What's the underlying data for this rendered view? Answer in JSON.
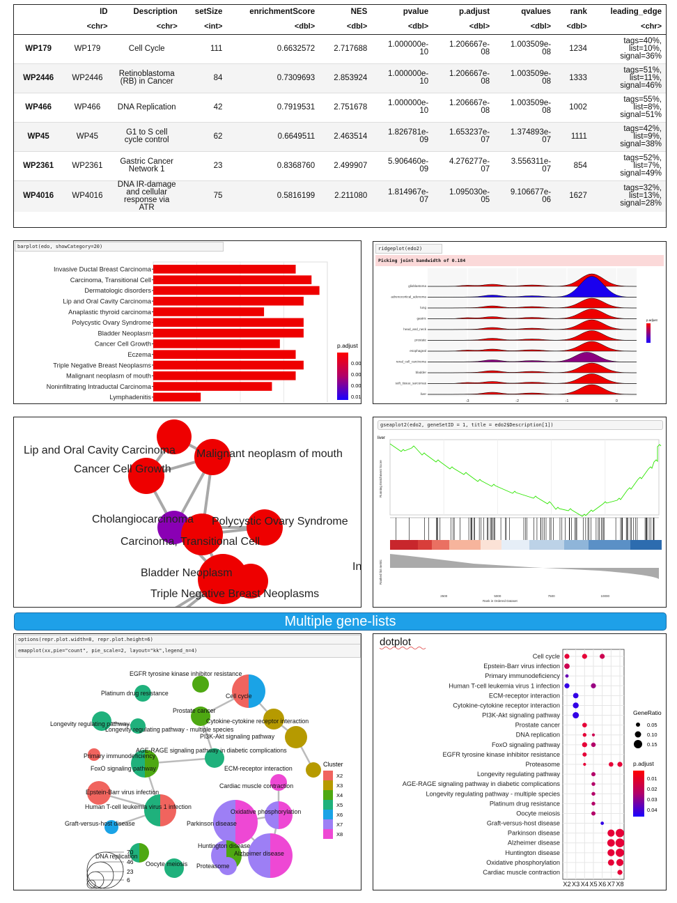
{
  "table": {
    "columns": [
      "",
      "ID",
      "Description",
      "setSize",
      "enrichmentScore",
      "NES",
      "pvalue",
      "p.adjust",
      "qvalues",
      "rank",
      "leading_edge"
    ],
    "types": [
      "",
      "<chr>",
      "<chr>",
      "<int>",
      "<dbl>",
      "<dbl>",
      "<dbl>",
      "<dbl>",
      "<dbl>",
      "<dbl>",
      "<chr>"
    ],
    "rows": [
      {
        "rowname": "WP179",
        "id": "WP179",
        "desc": "Cell Cycle",
        "size": "111",
        "es": "0.6632572",
        "nes": "2.717688",
        "pv1": "1.000000e-",
        "pv2": "10",
        "pa1": "1.206667e-",
        "pa2": "08",
        "qv1": "1.003509e-",
        "qv2": "08",
        "rank": "1234",
        "le1": "tags=40%,",
        "le2": "list=10%,",
        "le3": "signal=36%"
      },
      {
        "rowname": "WP2446",
        "id": "WP2446",
        "desc": "Retinoblastoma (RB) in Cancer",
        "size": "84",
        "es": "0.7309693",
        "nes": "2.853924",
        "pv1": "1.000000e-",
        "pv2": "10",
        "pa1": "1.206667e-",
        "pa2": "08",
        "qv1": "1.003509e-",
        "qv2": "08",
        "rank": "1333",
        "le1": "tags=51%,",
        "le2": "list=11%,",
        "le3": "signal=46%"
      },
      {
        "rowname": "WP466",
        "id": "WP466",
        "desc": "DNA Replication",
        "size": "42",
        "es": "0.7919531",
        "nes": "2.751678",
        "pv1": "1.000000e-",
        "pv2": "10",
        "pa1": "1.206667e-",
        "pa2": "08",
        "qv1": "1.003509e-",
        "qv2": "08",
        "rank": "1002",
        "le1": "tags=55%,",
        "le2": "list=8%,",
        "le3": "signal=51%"
      },
      {
        "rowname": "WP45",
        "id": "WP45",
        "desc": "G1 to S cell cycle control",
        "size": "62",
        "es": "0.6649511",
        "nes": "2.463514",
        "pv1": "1.826781e-",
        "pv2": "09",
        "pa1": "1.653237e-",
        "pa2": "07",
        "qv1": "1.374893e-",
        "qv2": "07",
        "rank": "1111",
        "le1": "tags=42%,",
        "le2": "list=9%,",
        "le3": "signal=38%"
      },
      {
        "rowname": "WP2361",
        "id": "WP2361",
        "desc": "Gastric Cancer Network 1",
        "size": "23",
        "es": "0.8368760",
        "nes": "2.499907",
        "pv1": "5.906460e-",
        "pv2": "09",
        "pa1": "4.276277e-",
        "pa2": "07",
        "qv1": "3.556311e-",
        "qv2": "07",
        "rank": "854",
        "le1": "tags=52%,",
        "le2": "list=7%,",
        "le3": "signal=49%"
      },
      {
        "rowname": "WP4016",
        "id": "WP4016",
        "desc": "DNA IR-damage and cellular response via ATR",
        "size": "75",
        "es": "0.5816199",
        "nes": "2.211080",
        "pv1": "1.814967e-",
        "pv2": "07",
        "pa1": "1.095030e-",
        "pa2": "05",
        "qv1": "9.106677e-",
        "qv2": "06",
        "rank": "1627",
        "le1": "tags=32%,",
        "le2": "list=13%,",
        "le3": "signal=28%"
      }
    ]
  },
  "barplot": {
    "code": "barplot(edo, showCategory=20)",
    "legend_title": "p.adjust",
    "legend_ticks": [
      "0.0025",
      "0.0050",
      "0.0075",
      "0.0100"
    ],
    "chart_data": {
      "type": "bar",
      "categories": [
        "Invasive Ductal Breast Carcinoma",
        "Carcinoma, Transitional Cell",
        "Dermatologic disorders",
        "Lip and Oral Cavity Carcinoma",
        "Anaplastic thyroid carcinoma",
        "Polycystic Ovary Syndrome",
        "Bladder Neoplasm",
        "Cancer Cell Growth",
        "Eczema",
        "Triple Negative Breast Neoplasms",
        "Malignant neoplasm of mouth",
        "Noninfiltrating Intraductal Carcinoma",
        "Lymphadenitis"
      ],
      "values": [
        18,
        20,
        21,
        19,
        14,
        19,
        19,
        16,
        18,
        19,
        18,
        15,
        6
      ],
      "colors": [
        "#ee0000",
        "#ee0000",
        "#ee0000",
        "#ee0000",
        "#ee0000",
        "#ee0000",
        "#ee0000",
        "#ee0000",
        "#ee0000",
        "#ee0000",
        "#ee0000",
        "#ee0000",
        "#ee0000"
      ],
      "xlim": [
        0,
        22
      ]
    }
  },
  "ridge": {
    "code": "ridgeplot(edo2)",
    "message": "Picking joint bandwidth of 0.184",
    "legend_title": "p.adjust",
    "categories": [
      "glioblastoma",
      "adrenocortical_adenoma",
      "lung",
      "gastric",
      "head_and_neck",
      "prostate",
      "esophageal",
      "renal_cell_carcinoma",
      "bladder",
      "soft_tissue_sarcomas",
      "liver"
    ],
    "x_ticks": [
      "-3",
      "-2",
      "-1",
      "0"
    ],
    "peak": [
      -0.5,
      -0.5,
      -0.5,
      -0.5,
      -0.5,
      -0.5,
      -0.5,
      -0.6,
      -0.5,
      -0.5,
      -0.5
    ],
    "fill": [
      "#ee0000",
      "#1a00ee",
      "#ee0000",
      "#ee0000",
      "#ee0000",
      "#ee0000",
      "#ee0000",
      "#8a0080",
      "#ee0000",
      "#ee0000",
      "#ee0000"
    ]
  },
  "network": {
    "labels": [
      "Lip and Oral Cavity Carcinoma",
      "Malignant neoplasm of mouth",
      "Cancer Cell Growth",
      "Cholangiocarcinoma",
      "Polycystic Ovary Syndrome",
      "Carcinoma, Transitional Cell",
      "Bladder Neoplasm",
      "Triple Negative Breast Neoplasms",
      "In"
    ]
  },
  "gsea": {
    "code": "gseaplot2(edo2, geneSetID = 1, title = edo2$Description[1])",
    "title": "liver",
    "ylabel_top": "Running Enrichment Score",
    "ylabel_bottom": "Ranked list metric",
    "xlabel": "Rank in Ordered Dataset",
    "x_ticks": [
      "2500",
      "5000",
      "7500",
      "10000"
    ]
  },
  "banner": {
    "text": "Multiple gene-lists"
  },
  "emap": {
    "code1": "options(repr.plot.width=8, repr.plot.height=6)",
    "code2": "emapplot(xx,pie=\"count\", pie_scale=2, layout=\"kk\",legend_n=4)",
    "cluster_title": "Cluster",
    "clusters": [
      {
        "name": "X2",
        "color": "#f0645e"
      },
      {
        "name": "X3",
        "color": "#b69a00"
      },
      {
        "name": "X4",
        "color": "#4ea812"
      },
      {
        "name": "X5",
        "color": "#1fb17c"
      },
      {
        "name": "X6",
        "color": "#1aa3e6"
      },
      {
        "name": "X7",
        "color": "#9d7ff5"
      },
      {
        "name": "X8",
        "color": "#ee48d4"
      }
    ],
    "size_ticks": [
      "70",
      "46",
      "23",
      "6"
    ],
    "nodes": [
      "EGFR tyrosine kinase inhibitor resistance",
      "Platinum drug resistance",
      "Cell cycle",
      "Prostate cancer",
      "Cytokine-cytokine receptor interaction",
      "Longevity regulating pathway",
      "Longevity regulating pathway - multiple species",
      "PI3K-Akt signaling pathway",
      "AGE-RAGE signaling pathway in diabetic complications",
      "Primary immunodeficiency",
      "FoxO signaling pathway",
      "ECM-receptor interaction",
      "Cardiac muscle contraction",
      "Epstein-Barr virus infection",
      "Oxidative phosphorylation",
      "Human T-cell leukemia virus 1 infection",
      "Graft-versus-host disease",
      "Parkinson disease",
      "Huntington disease",
      "Alzheimer disease",
      "DNA replication",
      "Oocyte meiosis",
      "Proteasome"
    ]
  },
  "dotplot": {
    "title": "dotplot",
    "legend_size_title": "GeneRatio",
    "legend_size_ticks": [
      "0.05",
      "0.10",
      "0.15"
    ],
    "legend_color_title": "p.adjust",
    "legend_color_ticks": [
      "0.01",
      "0.02",
      "0.03",
      "0.04"
    ],
    "chart_data": {
      "type": "scatter",
      "x_categories": [
        "X2",
        "X3",
        "X4",
        "X5",
        "X6",
        "X7",
        "X8"
      ],
      "y_categories": [
        "Cell cycle",
        "Epstein-Barr virus infection",
        "Primary immunodeficiency",
        "Human T-cell leukemia virus 1 infection",
        "ECM-receptor interaction",
        "Cytokine-cytokine receptor interaction",
        "PI3K-Akt signaling pathway",
        "Prostate cancer",
        "DNA replication",
        "FoxO signaling pathway",
        "EGFR tyrosine kinase inhibitor resistance",
        "Proteasome",
        "Longevity regulating pathway",
        "AGE-RAGE signaling pathway in diabetic complications",
        "Longevity regulating pathway - multiple species",
        "Platinum drug resistance",
        "Oocyte meiosis",
        "Graft-versus-host disease",
        "Parkinson disease",
        "Alzheimer disease",
        "Huntington disease",
        "Oxidative phosphorylation",
        "Cardiac muscle contraction"
      ],
      "points": [
        {
          "x": "X2",
          "y": "Cell cycle",
          "ratio": 0.07,
          "padj": 0.005
        },
        {
          "x": "X4",
          "y": "Cell cycle",
          "ratio": 0.07,
          "padj": 0.005
        },
        {
          "x": "X6",
          "y": "Cell cycle",
          "ratio": 0.07,
          "padj": 0.01
        },
        {
          "x": "X2",
          "y": "Epstein-Barr virus infection",
          "ratio": 0.08,
          "padj": 0.01
        },
        {
          "x": "X2",
          "y": "Primary immunodeficiency",
          "ratio": 0.03,
          "padj": 0.03
        },
        {
          "x": "X2",
          "y": "Human T-cell leukemia virus 1 infection",
          "ratio": 0.07,
          "padj": 0.04
        },
        {
          "x": "X5",
          "y": "Human T-cell leukemia virus 1 infection",
          "ratio": 0.07,
          "padj": 0.02
        },
        {
          "x": "X3",
          "y": "ECM-receptor interaction",
          "ratio": 0.08,
          "padj": 0.04
        },
        {
          "x": "X3",
          "y": "Cytokine-cytokine receptor interaction",
          "ratio": 0.09,
          "padj": 0.04
        },
        {
          "x": "X3",
          "y": "PI3K-Akt signaling pathway",
          "ratio": 0.1,
          "padj": 0.04
        },
        {
          "x": "X4",
          "y": "Prostate cancer",
          "ratio": 0.06,
          "padj": 0.005
        },
        {
          "x": "X4",
          "y": "DNA replication",
          "ratio": 0.04,
          "padj": 0.005
        },
        {
          "x": "X5",
          "y": "DNA replication",
          "ratio": 0.02,
          "padj": 0.01
        },
        {
          "x": "X4",
          "y": "FoxO signaling pathway",
          "ratio": 0.07,
          "padj": 0.005
        },
        {
          "x": "X5",
          "y": "FoxO signaling pathway",
          "ratio": 0.06,
          "padj": 0.015
        },
        {
          "x": "X4",
          "y": "EGFR tyrosine kinase inhibitor resistance",
          "ratio": 0.05,
          "padj": 0.005
        },
        {
          "x": "X4",
          "y": "Proteasome",
          "ratio": 0.02,
          "padj": 0.005
        },
        {
          "x": "X7",
          "y": "Proteasome",
          "ratio": 0.06,
          "padj": 0.005
        },
        {
          "x": "X8",
          "y": "Proteasome",
          "ratio": 0.07,
          "padj": 0.005
        },
        {
          "x": "X5",
          "y": "Longevity regulating pathway",
          "ratio": 0.05,
          "padj": 0.015
        },
        {
          "x": "X5",
          "y": "AGE-RAGE signaling pathway in diabetic complications",
          "ratio": 0.04,
          "padj": 0.015
        },
        {
          "x": "X5",
          "y": "Longevity regulating pathway - multiple species",
          "ratio": 0.04,
          "padj": 0.015
        },
        {
          "x": "X5",
          "y": "Platinum drug resistance",
          "ratio": 0.04,
          "padj": 0.015
        },
        {
          "x": "X5",
          "y": "Oocyte meiosis",
          "ratio": 0.05,
          "padj": 0.015
        },
        {
          "x": "X6",
          "y": "Graft-versus-host disease",
          "ratio": 0.03,
          "padj": 0.04
        },
        {
          "x": "X7",
          "y": "Parkinson disease",
          "ratio": 0.12,
          "padj": 0.005
        },
        {
          "x": "X8",
          "y": "Parkinson disease",
          "ratio": 0.15,
          "padj": 0.005
        },
        {
          "x": "X7",
          "y": "Alzheimer disease",
          "ratio": 0.13,
          "padj": 0.005
        },
        {
          "x": "X8",
          "y": "Alzheimer disease",
          "ratio": 0.16,
          "padj": 0.005
        },
        {
          "x": "X7",
          "y": "Huntington disease",
          "ratio": 0.12,
          "padj": 0.005
        },
        {
          "x": "X8",
          "y": "Huntington disease",
          "ratio": 0.15,
          "padj": 0.005
        },
        {
          "x": "X7",
          "y": "Oxidative phosphorylation",
          "ratio": 0.1,
          "padj": 0.005
        },
        {
          "x": "X8",
          "y": "Oxidative phosphorylation",
          "ratio": 0.12,
          "padj": 0.005
        },
        {
          "x": "X8",
          "y": "Cardiac muscle contraction",
          "ratio": 0.07,
          "padj": 0.005
        }
      ]
    }
  }
}
